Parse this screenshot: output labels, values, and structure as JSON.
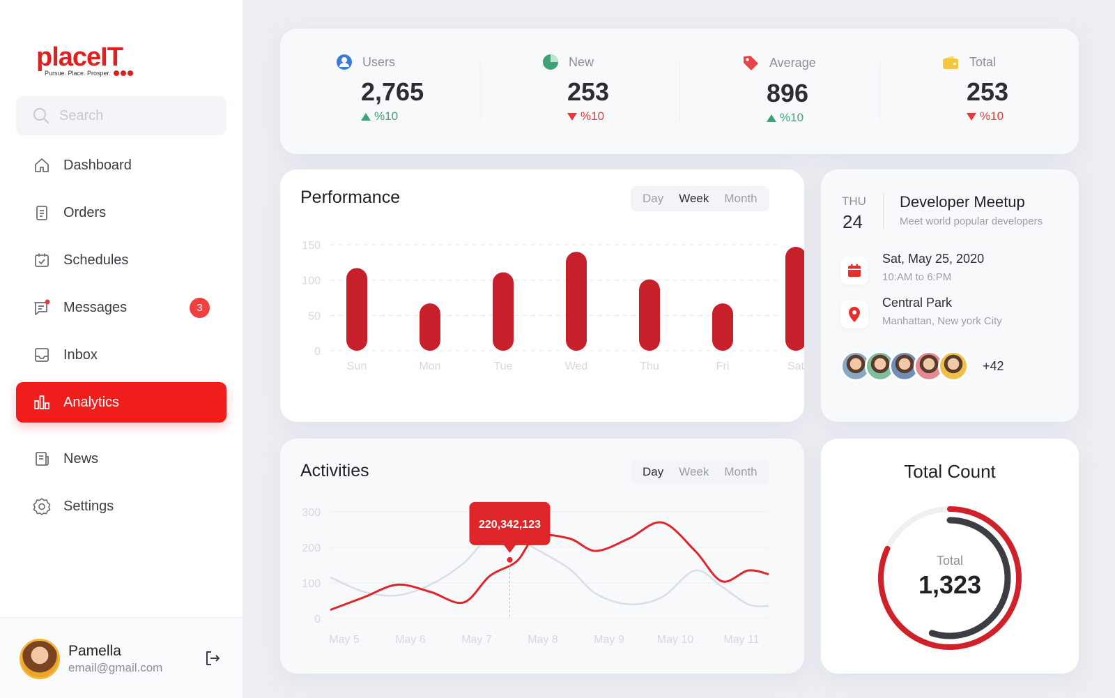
{
  "brand": {
    "name": "placeIT",
    "tagline": "Pursue. Place. Prosper."
  },
  "search": {
    "placeholder": "Search"
  },
  "nav": [
    {
      "label": "Dashboard",
      "icon": "home-icon"
    },
    {
      "label": "Orders",
      "icon": "clipboard-icon"
    },
    {
      "label": "Schedules",
      "icon": "calendar-check-icon"
    },
    {
      "label": "Messages",
      "icon": "message-icon",
      "badge": "3"
    },
    {
      "label": "Inbox",
      "icon": "inbox-icon"
    },
    {
      "label": "Analytics",
      "icon": "bar-chart-icon",
      "active": true
    },
    {
      "label": "News",
      "icon": "news-icon"
    },
    {
      "label": "Settings",
      "icon": "gear-icon"
    }
  ],
  "user": {
    "name": "Pamella",
    "email": "email@gmail.com"
  },
  "stats": [
    {
      "label": "Users",
      "value": "2,765",
      "delta": "%10",
      "trend": "up",
      "icon": "user-icon",
      "color": "#3b7bd6"
    },
    {
      "label": "New",
      "value": "253",
      "delta": "%10",
      "trend": "down",
      "icon": "pie-icon",
      "color": "#3fa177"
    },
    {
      "label": "Average",
      "value": "896",
      "delta": "%10",
      "trend": "up",
      "icon": "tag-icon",
      "color": "#e8454a"
    },
    {
      "label": "Total",
      "value": "253",
      "delta": "%10",
      "trend": "down",
      "icon": "wallet-icon",
      "color": "#f3c83f"
    }
  ],
  "performance": {
    "title": "Performance",
    "tabs": [
      "Day",
      "Week",
      "Month"
    ],
    "active_tab": "Week"
  },
  "activities": {
    "title": "Activities",
    "tabs": [
      "Day",
      "Week",
      "Month"
    ],
    "active_tab": "Day",
    "tooltip": "220,342,123"
  },
  "chart_data": [
    {
      "type": "bar",
      "title": "Performance",
      "categories": [
        "Sun",
        "Mon",
        "Tue",
        "Wed",
        "Thu",
        "Fri",
        "Sat"
      ],
      "values": [
        117,
        67,
        111,
        140,
        101,
        67,
        147
      ],
      "yticks": [
        0,
        50,
        100,
        150
      ],
      "ylim": [
        0,
        150
      ],
      "color": "#c8202a",
      "grid": "dashed"
    },
    {
      "type": "line",
      "title": "Activities",
      "categories": [
        "May 5",
        "May 6",
        "May 7",
        "May 8",
        "May 9",
        "May 10",
        "May 11"
      ],
      "yticks": [
        0,
        100,
        200,
        300
      ],
      "ylim": [
        0,
        300
      ],
      "x": [
        4.8,
        5.3,
        5.8,
        6.3,
        6.8,
        7.2,
        7.6,
        7.9,
        8.4,
        8.8,
        9.3,
        9.8,
        10.3,
        10.7,
        11.1,
        11.4
      ],
      "series": [
        {
          "color": "#e0252a",
          "values": [
            25,
            60,
            95,
            75,
            45,
            120,
            160,
            230,
            225,
            190,
            225,
            270,
            190,
            105,
            135,
            125
          ]
        },
        {
          "color": "#d8dde8",
          "values": [
            115,
            75,
            65,
            95,
            155,
            230,
            225,
            195,
            140,
            70,
            40,
            60,
            135,
            90,
            40,
            35
          ]
        }
      ],
      "highlight": {
        "x": 7.5,
        "y": 165
      }
    }
  ],
  "meetup": {
    "day": "THU",
    "date": "24",
    "title": "Developer Meetup",
    "subtitle": "Meet world popular developers",
    "when": "Sat, May 25, 2020",
    "time": "10:AM to 6:PM",
    "place": "Central Park",
    "address": "Manhattan, New york City",
    "attendees_more": "+42",
    "avatar_colors": [
      "#8aa7c4",
      "#7fbf9d",
      "#6f8fb8",
      "#e48a93",
      "#f1c04a"
    ]
  },
  "total_count": {
    "title": "Total Count",
    "label": "Total",
    "value": "1,323",
    "ring_outer_fraction": 0.82,
    "ring_inner_fraction": 0.55,
    "outer_color": "#d0202a",
    "inner_color": "#3b3d42"
  }
}
